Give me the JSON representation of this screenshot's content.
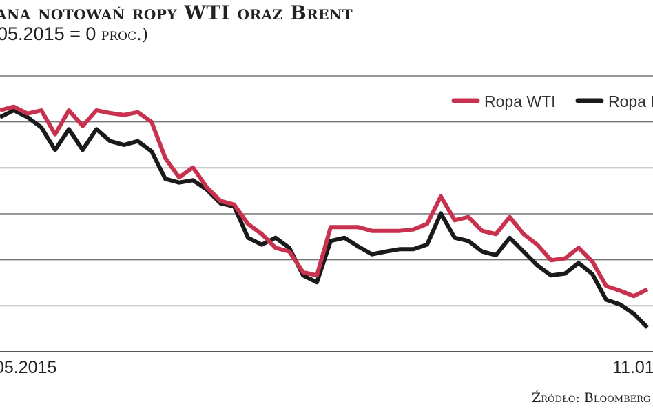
{
  "chart_data": {
    "type": "line",
    "title": "ana notowań ropy WTI oraz Brent",
    "subtitle": "05.2015 = 0 proc.)",
    "x_tick_labels": [
      "05.2015",
      "11.01"
    ],
    "ylim": [
      -50,
      10
    ],
    "gridlines": [
      10,
      0,
      -10,
      -20,
      -30,
      -40,
      -50
    ],
    "grid": true,
    "legend_position": "top-right",
    "series": [
      {
        "name": "Ropa WTI",
        "color": "#c8324f",
        "values": [
          2.5,
          3.3,
          1.8,
          2.5,
          -2.7,
          2.5,
          -0.9,
          2.5,
          1.9,
          1.5,
          2.1,
          0,
          -7.9,
          -12.1,
          -9.9,
          -14.2,
          -17.2,
          -18.0,
          -22.2,
          -24.4,
          -27.4,
          -28.2,
          -32.7,
          -33.4,
          -22.9,
          -22.9,
          -22.9,
          -23.7,
          -23.7,
          -23.7,
          -23.4,
          -22.2,
          -16.2,
          -21.4,
          -20.7,
          -23.7,
          -24.4,
          -20.7,
          -24.4,
          -26.7,
          -30.1,
          -29.7,
          -27.4,
          -30.4,
          -35.7,
          -36.7,
          -37.9,
          -36.4
        ]
      },
      {
        "name": "Ropa Brent",
        "color": "#1a1a1a",
        "values": [
          1.0,
          2.5,
          1.0,
          -1.2,
          -6.1,
          -1.6,
          -6.1,
          -1.6,
          -4.2,
          -5.0,
          -4.2,
          -6.4,
          -12.4,
          -13.2,
          -12.7,
          -14.7,
          -17.7,
          -18.4,
          -25.2,
          -26.7,
          -25.2,
          -27.4,
          -33.4,
          -34.9,
          -25.9,
          -25.2,
          -27.1,
          -28.8,
          -28.2,
          -27.7,
          -27.7,
          -26.7,
          -19.9,
          -25.2,
          -25.9,
          -28.2,
          -29.0,
          -25.2,
          -28.2,
          -31.2,
          -33.4,
          -33.0,
          -30.7,
          -33.1,
          -38.7,
          -39.7,
          -41.7,
          -44.7
        ]
      }
    ],
    "source": "Źródło: Bloomberg"
  },
  "subtitle_parts": {
    "num": "05.2015 = 0 ",
    "unit": "proc.)"
  }
}
